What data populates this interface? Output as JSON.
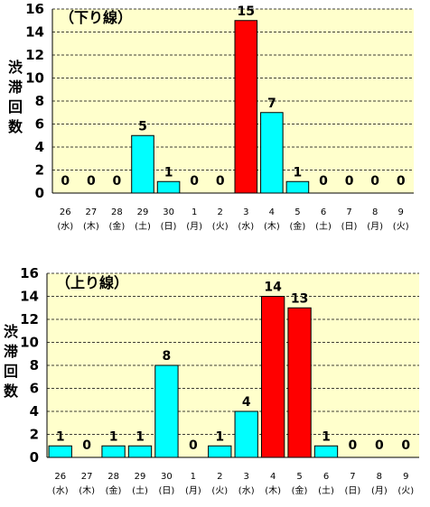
{
  "chart_data": [
    {
      "type": "bar",
      "title": "（下り線）",
      "ylabel": "渋滞回数",
      "ylim": [
        0,
        16
      ],
      "yticks": [
        0,
        2,
        4,
        6,
        8,
        10,
        12,
        14,
        16
      ],
      "grid": true,
      "plot_background": "#ffffcc",
      "categories": [
        "26",
        "27",
        "28",
        "29",
        "30",
        "1",
        "2",
        "3",
        "4",
        "5",
        "6",
        "7",
        "8",
        "9"
      ],
      "weekdays": [
        "(水)",
        "(木)",
        "(金)",
        "(土)",
        "(日)",
        "(月)",
        "(火)",
        "(水)",
        "(木)",
        "(金)",
        "(土)",
        "(日)",
        "(月)",
        "(火)"
      ],
      "values": [
        0,
        0,
        0,
        5,
        1,
        0,
        0,
        15,
        7,
        1,
        0,
        0,
        0,
        0
      ],
      "bar_colors": [
        "#00ffff",
        "#00ffff",
        "#00ffff",
        "#00ffff",
        "#00ffff",
        "#00ffff",
        "#00ffff",
        "#ff0000",
        "#00ffff",
        "#00ffff",
        "#00ffff",
        "#00ffff",
        "#00ffff",
        "#00ffff"
      ]
    },
    {
      "type": "bar",
      "title": "（上り線）",
      "ylabel": "渋滞回数",
      "ylim": [
        0,
        16
      ],
      "yticks": [
        0,
        2,
        4,
        6,
        8,
        10,
        12,
        14,
        16
      ],
      "grid": true,
      "plot_background": "#ffffcc",
      "categories": [
        "26",
        "27",
        "28",
        "29",
        "30",
        "1",
        "2",
        "3",
        "4",
        "5",
        "6",
        "7",
        "8",
        "9"
      ],
      "weekdays": [
        "(水)",
        "(木)",
        "(金)",
        "(土)",
        "(日)",
        "(月)",
        "(火)",
        "(水)",
        "(木)",
        "(金)",
        "(土)",
        "(日)",
        "(月)",
        "(火)"
      ],
      "values": [
        1,
        0,
        1,
        1,
        8,
        0,
        1,
        4,
        14,
        13,
        1,
        0,
        0,
        0
      ],
      "bar_colors": [
        "#00ffff",
        "#00ffff",
        "#00ffff",
        "#00ffff",
        "#00ffff",
        "#00ffff",
        "#00ffff",
        "#00ffff",
        "#ff0000",
        "#ff0000",
        "#00ffff",
        "#00ffff",
        "#00ffff",
        "#00ffff"
      ]
    }
  ]
}
